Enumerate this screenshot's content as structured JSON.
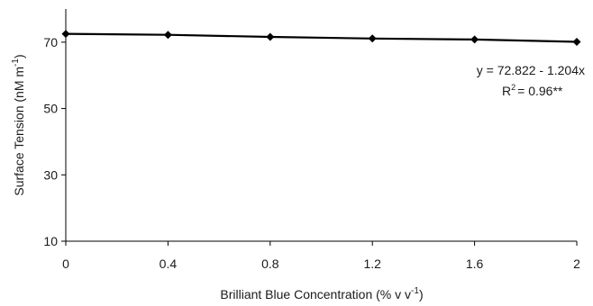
{
  "chart_data": {
    "type": "line",
    "x": [
      0,
      0.4,
      0.8,
      1.2,
      1.6,
      2
    ],
    "series": [
      {
        "values": [
          72.5,
          72.2,
          71.6,
          71.1,
          70.8,
          70.1
        ]
      }
    ],
    "xlabel": {
      "main": "Brilliant Blue Concentration (% v v",
      "sup": "-1",
      "end": ")"
    },
    "ylabel": {
      "main": "Surface Tension (nM m",
      "sup": "-1",
      "end": ")"
    },
    "xlim": [
      0,
      2
    ],
    "ylim": [
      10,
      80
    ],
    "xticks": [
      0,
      0.4,
      0.8,
      1.2,
      1.6,
      2
    ],
    "xtick_labels": [
      "0",
      "0.4",
      "0.8",
      "1.2",
      "1.6",
      "2"
    ],
    "yticks": [
      10,
      30,
      50,
      70
    ],
    "ytick_labels": [
      "10",
      "30",
      "50",
      "70"
    ],
    "grid": false,
    "annotations": {
      "equation": "y = 72.822 - 1.204x",
      "r2_prefix": "R",
      "r2_sup": "2",
      "r2_value": "= 0.96**"
    },
    "colors": {
      "line": "#000000",
      "marker": "#000000"
    }
  }
}
